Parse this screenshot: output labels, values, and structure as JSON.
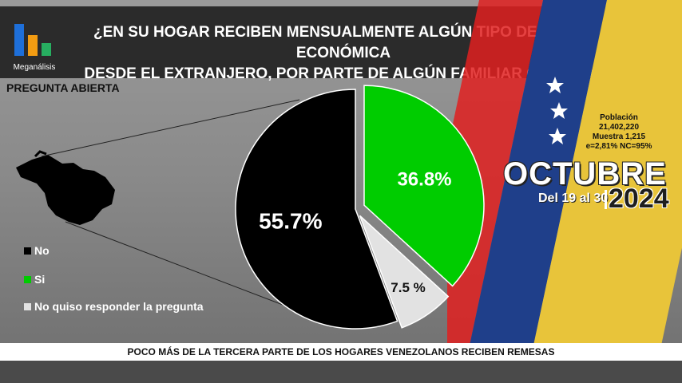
{
  "header": {
    "logo_text": "Meganálisis",
    "title_line1": "¿EN SU HOGAR RECIBEN MENSUALMENTE ALGÚN TIPO DE AYUDA ECONÓMICA",
    "title_line2": "DESDE EL EXTRANJERO, POR PARTE DE ALGÚN FAMILIAR O AMIGO?"
  },
  "question_type": "PREGUNTA ABIERTA",
  "stats": {
    "label": "Población",
    "population": "21,402,220",
    "sample": "Muestra 1,215",
    "error": "e=2,81%  NC=95%"
  },
  "period": {
    "month": "OCTUBRE",
    "days": "Del 19 al 30",
    "year": "2024"
  },
  "footer": "POCO MÁS DE LA TERCERA PARTE DE LOS HOGARES VENEZOLANOS RECIBEN REMESAS",
  "colors": {
    "no": "#000000",
    "si": "#00cc00",
    "no_responde": "#e2e2e2",
    "logo_blue": "#1e6fd9",
    "logo_orange": "#f39c12",
    "logo_green": "#27ae60"
  },
  "chart_data": {
    "type": "pie",
    "categories": [
      "No",
      "Si",
      "No quiso responder la pregunta"
    ],
    "values": [
      55.7,
      36.8,
      7.5
    ],
    "data_labels": [
      "55.7%",
      "36.8%",
      "7.5 %"
    ],
    "legend": "left"
  }
}
